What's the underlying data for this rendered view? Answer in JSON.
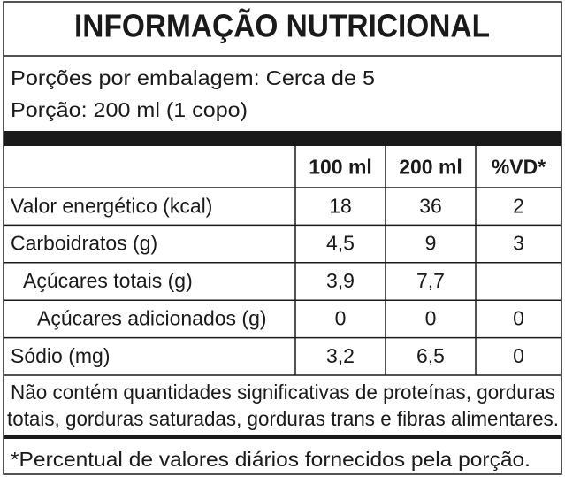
{
  "title": "INFORMAÇÃO NUTRICIONAL",
  "servings": [
    "Porções por embalagem: Cerca de 5",
    "Porção: 200 ml (1 copo)"
  ],
  "table": {
    "header": [
      "100 ml",
      "200 ml",
      "%VD*"
    ],
    "rows": [
      [
        "Valor energético (kcal)",
        "18",
        "36",
        "2"
      ],
      [
        "Carboidratos (g)",
        "4,5",
        "9",
        "3"
      ],
      [
        "Açúcares totais (g)",
        "3,9",
        "7,7",
        null
      ],
      [
        "Açúcares adicionados (g)",
        "0",
        "0",
        "0"
      ],
      [
        "Sódio (mg)",
        "3,2",
        "6,5",
        "0"
      ]
    ]
  },
  "footer": [
    "Não contém quantidades significativas de proteínas, gorduras",
    "totais, gorduras saturadas, gorduras trans e fibras alimentares."
  ],
  "footnote": "*Percentual de valores diários fornecidos pela porção."
}
